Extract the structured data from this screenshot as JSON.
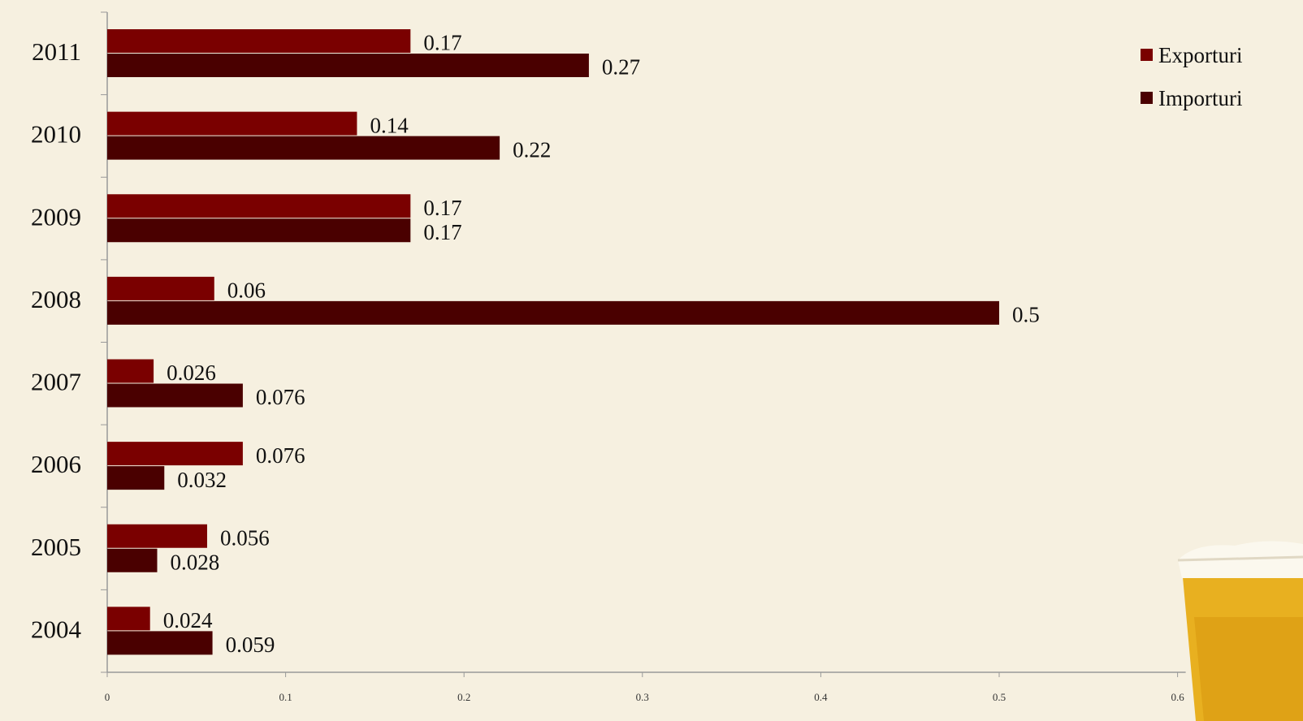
{
  "chart_data": {
    "type": "hbar",
    "categories": [
      "2011",
      "2010",
      "2009",
      "2008",
      "2007",
      "2006",
      "2005",
      "2004"
    ],
    "series": [
      {
        "name": "Exporturi",
        "color": "#7a0000",
        "values": [
          0.17,
          0.14,
          0.17,
          0.06,
          0.026,
          0.076,
          0.056,
          0.024
        ]
      },
      {
        "name": "Importuri",
        "color": "#4a0000",
        "values": [
          0.27,
          0.22,
          0.17,
          0.5,
          0.076,
          0.032,
          0.028,
          0.059
        ]
      }
    ],
    "xlim": [
      0,
      0.6
    ],
    "xticks": [
      0,
      0.1,
      0.2,
      0.3,
      0.4,
      0.5,
      0.6
    ],
    "legend": "top-right"
  }
}
